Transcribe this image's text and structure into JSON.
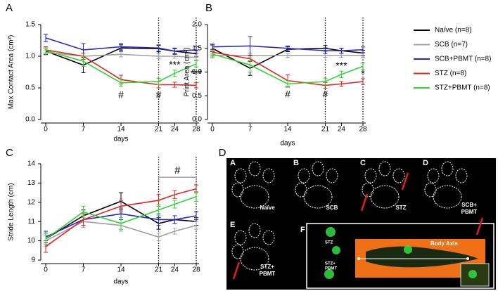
{
  "chart_data": [
    {
      "type": "line",
      "panel_label": "A",
      "ylabel": "Max Contact Area (cm²)",
      "xlabel": "days",
      "x": [
        0,
        7,
        14,
        21,
        24,
        28
      ],
      "xlim": [
        0,
        28
      ],
      "xticks": [
        0,
        7,
        14,
        21,
        24,
        28
      ],
      "ylim": [
        0,
        1.5
      ],
      "yticks": [
        {
          "value": 0,
          "label": "0.0"
        },
        0.5,
        {
          "value": 1,
          "label": "1.0"
        },
        1.5
      ],
      "ref_lines_x": [
        21,
        28
      ],
      "series": [
        {
          "values": [
            1.08,
            0.86,
            1.13,
            1.12,
            1.08,
            1.04
          ],
          "errors": [
            0.05,
            0.12,
            0.05,
            0.05,
            0.04,
            0.05
          ]
        },
        {
          "values": [
            1.06,
            1.0,
            1.03,
            1.0,
            1.0,
            0.98
          ],
          "errors": [
            0.04,
            0.05,
            0.04,
            0.04,
            0.03,
            0.04
          ]
        },
        {
          "values": [
            1.29,
            1.1,
            1.15,
            1.13,
            1.08,
            1.1
          ],
          "errors": [
            0.06,
            0.1,
            0.05,
            0.05,
            0.05,
            0.05
          ]
        },
        {
          "values": [
            1.1,
            1.0,
            0.63,
            0.55,
            0.55,
            0.54
          ],
          "errors": [
            0.05,
            0.05,
            0.07,
            0.05,
            0.04,
            0.04
          ]
        },
        {
          "values": [
            1.09,
            0.92,
            0.58,
            0.6,
            0.73,
            0.88
          ],
          "errors": [
            0.04,
            0.08,
            0.06,
            0.05,
            0.05,
            0.05
          ]
        }
      ],
      "annotations": [
        {
          "x": 14,
          "y": 0.38,
          "text": "#"
        },
        {
          "x": 21,
          "y": 0.38,
          "text": "#"
        },
        {
          "x": 24,
          "y": 0.86,
          "text": "***"
        },
        {
          "x": 28,
          "y": 0.72,
          "text": "***"
        }
      ]
    },
    {
      "type": "line",
      "panel_label": "B",
      "ylabel": "Print Area (cm²)",
      "xlabel": "days",
      "x": [
        0,
        7,
        14,
        21,
        24,
        28
      ],
      "xlim": [
        0,
        28
      ],
      "xticks": [
        0,
        7,
        14,
        21,
        24,
        28
      ],
      "ylim": [
        0,
        2
      ],
      "yticks": [
        {
          "value": 0,
          "label": "0.0"
        },
        0.5,
        {
          "value": 1,
          "label": "1.0"
        },
        1.5,
        {
          "value": 2,
          "label": "2.0"
        }
      ],
      "ref_lines_x": [
        21,
        28
      ],
      "series": [
        {
          "values": [
            1.5,
            1.08,
            1.48,
            1.5,
            1.45,
            1.4
          ],
          "errors": [
            0.07,
            0.15,
            0.05,
            0.06,
            0.05,
            0.06
          ]
        },
        {
          "values": [
            1.35,
            1.35,
            1.35,
            1.35,
            1.35,
            1.35
          ],
          "errors": [
            0.05,
            0.05,
            0.04,
            0.04,
            0.04,
            0.04
          ]
        },
        {
          "values": [
            1.53,
            1.55,
            1.5,
            1.45,
            1.45,
            1.47
          ],
          "errors": [
            0.06,
            0.2,
            0.05,
            0.06,
            0.05,
            0.06
          ]
        },
        {
          "values": [
            1.42,
            1.28,
            0.82,
            0.72,
            0.75,
            0.8
          ],
          "errors": [
            0.06,
            0.06,
            0.12,
            0.06,
            0.05,
            0.06
          ]
        },
        {
          "values": [
            1.38,
            1.15,
            0.75,
            0.8,
            0.95,
            1.12
          ],
          "errors": [
            0.06,
            0.15,
            0.07,
            0.07,
            0.07,
            0.07
          ]
        }
      ],
      "annotations": [
        {
          "x": 14,
          "y": 0.52,
          "text": "#"
        },
        {
          "x": 21,
          "y": 0.52,
          "text": "#"
        },
        {
          "x": 24,
          "y": 1.12,
          "text": "***"
        },
        {
          "x": 28,
          "y": 0.95,
          "text": "*"
        }
      ]
    },
    {
      "type": "line",
      "panel_label": "C",
      "ylabel": "Stride Length (cm)",
      "xlabel": "days",
      "x": [
        0,
        7,
        14,
        21,
        24,
        28
      ],
      "xlim": [
        0,
        28
      ],
      "xticks": [
        0,
        7,
        14,
        21,
        24,
        28
      ],
      "ylim": [
        9,
        14
      ],
      "yticks": [
        9,
        10,
        11,
        12,
        13,
        14
      ],
      "ref_lines_x": [
        21,
        28
      ],
      "series": [
        {
          "values": [
            10.1,
            11.3,
            12.05,
            10.9,
            11.1,
            11.0
          ],
          "errors": [
            0.3,
            0.3,
            0.45,
            0.3,
            0.2,
            0.2
          ]
        },
        {
          "values": [
            10.0,
            11.0,
            10.8,
            10.2,
            10.5,
            10.8
          ],
          "errors": [
            0.3,
            0.3,
            0.3,
            0.2,
            0.15,
            0.2
          ]
        },
        {
          "values": [
            10.2,
            11.1,
            11.4,
            11.1,
            11.1,
            11.3
          ],
          "errors": [
            0.3,
            0.3,
            0.3,
            0.3,
            0.2,
            0.2
          ]
        },
        {
          "values": [
            9.7,
            11.1,
            11.8,
            12.1,
            12.4,
            12.7
          ],
          "errors": [
            0.3,
            0.3,
            0.3,
            0.3,
            0.2,
            0.2
          ]
        },
        {
          "values": [
            10.1,
            11.5,
            10.9,
            11.6,
            11.9,
            12.3
          ],
          "errors": [
            0.3,
            0.3,
            0.3,
            0.3,
            0.2,
            0.25
          ]
        }
      ],
      "bracket": {
        "x": [
          21,
          28
        ],
        "y": 13.3,
        "text": "#"
      }
    }
  ],
  "legend": {
    "entries": [
      {
        "name": "Naïve (n=8)",
        "color": "#000000"
      },
      {
        "name": "SCB (n=7)",
        "color": "#a0a0a0"
      },
      {
        "name": "SCB+PBMT (n=8)",
        "color": "#2626c4"
      },
      {
        "name": "STZ (n=8)",
        "color": "#e02424"
      },
      {
        "name": "STZ+PBMT (n=8)",
        "color": "#2fd42f"
      }
    ]
  },
  "image_panel": {
    "panel_label": "D",
    "tiles": [
      {
        "label": "A",
        "caption": [
          "Naïve"
        ]
      },
      {
        "label": "B",
        "caption": [
          "SCB"
        ]
      },
      {
        "label": "C",
        "caption": [
          "STZ"
        ]
      },
      {
        "label": "D",
        "caption": [
          "SCB+",
          "PBMT"
        ]
      },
      {
        "label": "E",
        "caption": [
          "STZ+",
          "PBMT"
        ]
      }
    ],
    "inset": {
      "label": "F",
      "texts": [
        "STZ",
        "STZ+",
        "PBMT",
        "Body Axis"
      ]
    }
  }
}
